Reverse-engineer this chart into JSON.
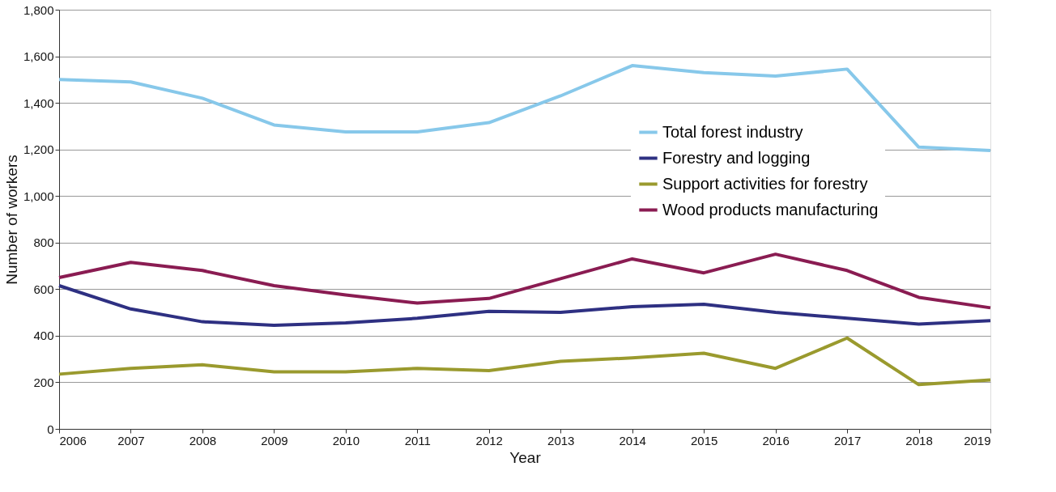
{
  "chart_data": {
    "type": "line",
    "xlabel": "Year",
    "ylabel": "Number of workers",
    "x": [
      2006,
      2007,
      2008,
      2009,
      2010,
      2011,
      2012,
      2013,
      2014,
      2015,
      2016,
      2017,
      2018,
      2019
    ],
    "series": [
      {
        "name": "Total forest industry",
        "color": "#87c8ea",
        "values": [
          1500,
          1490,
          1420,
          1305,
          1275,
          1275,
          1315,
          1430,
          1560,
          1530,
          1515,
          1545,
          1210,
          1195
        ]
      },
      {
        "name": "Forestry and logging",
        "color": "#2e3082",
        "values": [
          615,
          515,
          460,
          445,
          455,
          475,
          505,
          500,
          525,
          535,
          500,
          475,
          450,
          465
        ]
      },
      {
        "name": "Support activities for forestry",
        "color": "#9a9a2e",
        "values": [
          235,
          260,
          275,
          245,
          245,
          260,
          250,
          290,
          305,
          325,
          260,
          390,
          190,
          210
        ]
      },
      {
        "name": "Wood products manufacturing",
        "color": "#8a1c52",
        "values": [
          650,
          715,
          680,
          615,
          575,
          540,
          560,
          645,
          730,
          670,
          750,
          680,
          565,
          520
        ]
      }
    ],
    "xlim": [
      2006,
      2019
    ],
    "xticks": [
      2006,
      2007,
      2008,
      2009,
      2010,
      2011,
      2012,
      2013,
      2014,
      2015,
      2016,
      2017,
      2018,
      2019
    ],
    "ylim": [
      0,
      1800
    ],
    "yticks": [
      0,
      200,
      400,
      600,
      800,
      {
        "value": 1000,
        "label": "1,000"
      },
      {
        "value": 1200,
        "label": "1,200"
      },
      {
        "value": 1400,
        "label": "1,400"
      },
      {
        "value": 1600,
        "label": "1,600"
      },
      {
        "value": 1800,
        "label": "1,800"
      }
    ],
    "grid": "y",
    "legend": "top right",
    "marker": "none",
    "line_style": "solid"
  }
}
